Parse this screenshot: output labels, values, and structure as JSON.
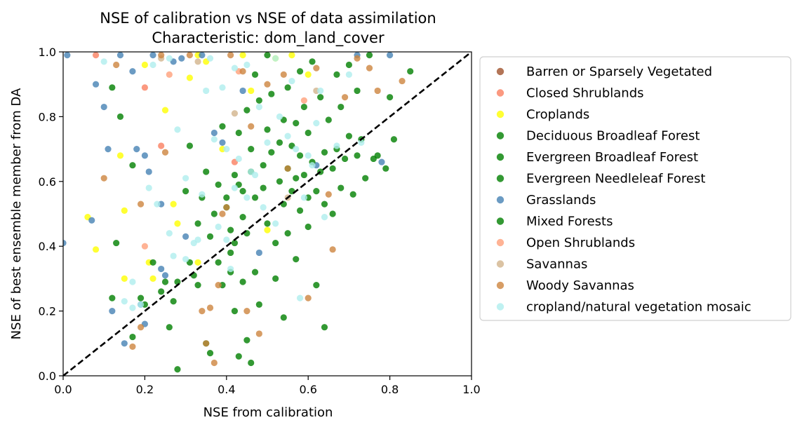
{
  "chart_data": {
    "type": "scatter",
    "title": "NSE of calibration vs NSE of data assimilation",
    "subtitle": "Characteristic: dom_land_cover",
    "xlabel": "NSE from calibration",
    "ylabel": "NSE of best ensemble member from DA",
    "xlim": [
      0.0,
      1.0
    ],
    "ylim": [
      0.0,
      1.0
    ],
    "xticks": [
      "0.0",
      "0.2",
      "0.4",
      "0.6",
      "0.8",
      "1.0"
    ],
    "yticks": [
      "0.0",
      "0.2",
      "0.4",
      "0.6",
      "0.8",
      "1.0"
    ],
    "grid": false,
    "legend_position": "outside-right",
    "reference_line": {
      "type": "identity",
      "style": "dashed",
      "color": "#000000",
      "from": [
        0,
        0
      ],
      "to": [
        1,
        1
      ]
    },
    "series": [
      {
        "name": "Barren or Sparsely Vegetated",
        "color": "#a0522d",
        "points": []
      },
      {
        "name": "Closed Shrublands",
        "color": "#fa8060",
        "points": [
          [
            0.08,
            0.99
          ],
          [
            0.2,
            0.89
          ],
          [
            0.24,
            0.71
          ],
          [
            0.42,
            0.66
          ]
        ]
      },
      {
        "name": "Croplands",
        "color": "#ffff00",
        "points": [
          [
            0.06,
            0.49
          ],
          [
            0.08,
            0.39
          ],
          [
            0.14,
            0.68
          ],
          [
            0.15,
            0.51
          ],
          [
            0.15,
            0.3
          ],
          [
            0.2,
            0.96
          ],
          [
            0.21,
            0.35
          ],
          [
            0.22,
            0.3
          ],
          [
            0.25,
            0.82
          ],
          [
            0.27,
            0.53
          ],
          [
            0.28,
            0.47
          ],
          [
            0.31,
            0.92
          ],
          [
            0.33,
            0.99
          ],
          [
            0.33,
            0.35
          ],
          [
            0.35,
            0.97
          ],
          [
            0.39,
            0.7
          ],
          [
            0.44,
            0.99
          ],
          [
            0.46,
            0.88
          ],
          [
            0.5,
            0.45
          ],
          [
            0.52,
            0.98
          ],
          [
            0.56,
            0.99
          ],
          [
            0.6,
            0.93
          ]
        ]
      },
      {
        "name": "Deciduous Broadleaf Forest",
        "color": "#008000",
        "points": []
      },
      {
        "name": "Evergreen Broadleaf Forest",
        "color": "#008000",
        "points": []
      },
      {
        "name": "Evergreen Needleleaf Forest",
        "color": "#008000",
        "points": []
      },
      {
        "name": "Grasslands",
        "color": "#4682b4",
        "points": [
          [
            0.0,
            0.41
          ],
          [
            0.01,
            0.99
          ],
          [
            0.07,
            0.48
          ],
          [
            0.08,
            0.9
          ],
          [
            0.1,
            0.83
          ],
          [
            0.11,
            0.7
          ],
          [
            0.12,
            0.2
          ],
          [
            0.14,
            0.99
          ],
          [
            0.15,
            0.1
          ],
          [
            0.17,
            0.94
          ],
          [
            0.18,
            0.7
          ],
          [
            0.19,
            0.22
          ],
          [
            0.2,
            0.68
          ],
          [
            0.2,
            0.16
          ],
          [
            0.21,
            0.63
          ],
          [
            0.22,
            0.99
          ],
          [
            0.24,
            0.53
          ],
          [
            0.24,
            0.33
          ],
          [
            0.25,
            0.31
          ],
          [
            0.27,
            0.97
          ],
          [
            0.29,
            0.98
          ],
          [
            0.3,
            0.43
          ],
          [
            0.34,
            0.99
          ],
          [
            0.37,
            0.75
          ],
          [
            0.39,
            0.72
          ],
          [
            0.44,
            0.88
          ],
          [
            0.48,
            0.38
          ],
          [
            0.62,
            0.65
          ],
          [
            0.72,
            0.99
          ],
          [
            0.78,
            0.66
          ],
          [
            0.8,
            0.99
          ]
        ]
      },
      {
        "name": "Mixed Forests",
        "color": "#008000",
        "points": [
          [
            0.12,
            0.89
          ],
          [
            0.12,
            0.24
          ],
          [
            0.13,
            0.41
          ],
          [
            0.14,
            0.8
          ],
          [
            0.17,
            0.65
          ],
          [
            0.17,
            0.12
          ],
          [
            0.19,
            0.24
          ],
          [
            0.2,
            0.22
          ],
          [
            0.22,
            0.35
          ],
          [
            0.24,
            0.26
          ],
          [
            0.25,
            0.29
          ],
          [
            0.26,
            0.15
          ],
          [
            0.27,
            0.23
          ],
          [
            0.28,
            0.29
          ],
          [
            0.28,
            0.02
          ],
          [
            0.3,
            0.57
          ],
          [
            0.31,
            0.71
          ],
          [
            0.31,
            0.35
          ],
          [
            0.32,
            0.31
          ],
          [
            0.33,
            0.28
          ],
          [
            0.33,
            0.47
          ],
          [
            0.34,
            0.55
          ],
          [
            0.35,
            0.63
          ],
          [
            0.35,
            0.1
          ],
          [
            0.36,
            0.43
          ],
          [
            0.36,
            0.07
          ],
          [
            0.37,
            0.5
          ],
          [
            0.38,
            0.59
          ],
          [
            0.38,
            0.35
          ],
          [
            0.39,
            0.77
          ],
          [
            0.39,
            0.28
          ],
          [
            0.4,
            0.55
          ],
          [
            0.4,
            0.52
          ],
          [
            0.41,
            0.45
          ],
          [
            0.41,
            0.38
          ],
          [
            0.41,
            0.32
          ],
          [
            0.42,
            0.62
          ],
          [
            0.42,
            0.41
          ],
          [
            0.42,
            0.2
          ],
          [
            0.43,
            0.75
          ],
          [
            0.43,
            0.59
          ],
          [
            0.43,
            0.06
          ],
          [
            0.44,
            0.57
          ],
          [
            0.44,
            0.49
          ],
          [
            0.44,
            0.29
          ],
          [
            0.45,
            0.82
          ],
          [
            0.45,
            0.44
          ],
          [
            0.45,
            0.11
          ],
          [
            0.46,
            0.7
          ],
          [
            0.46,
            0.63
          ],
          [
            0.46,
            0.04
          ],
          [
            0.47,
            0.93
          ],
          [
            0.47,
            0.55
          ],
          [
            0.47,
            0.32
          ],
          [
            0.48,
            0.85
          ],
          [
            0.48,
            0.22
          ],
          [
            0.49,
            0.65
          ],
          [
            0.49,
            0.58
          ],
          [
            0.5,
            0.99
          ],
          [
            0.5,
            0.76
          ],
          [
            0.5,
            0.47
          ],
          [
            0.51,
            0.87
          ],
          [
            0.51,
            0.69
          ],
          [
            0.52,
            0.41
          ],
          [
            0.52,
            0.3
          ],
          [
            0.53,
            0.72
          ],
          [
            0.53,
            0.6
          ],
          [
            0.54,
            0.79
          ],
          [
            0.54,
            0.53
          ],
          [
            0.54,
            0.18
          ],
          [
            0.55,
            0.89
          ],
          [
            0.55,
            0.64
          ],
          [
            0.55,
            0.44
          ],
          [
            0.56,
            0.71
          ],
          [
            0.56,
            0.57
          ],
          [
            0.57,
            0.78
          ],
          [
            0.57,
            0.61
          ],
          [
            0.57,
            0.36
          ],
          [
            0.58,
            0.94
          ],
          [
            0.58,
            0.68
          ],
          [
            0.58,
            0.51
          ],
          [
            0.59,
            0.83
          ],
          [
            0.59,
            0.62
          ],
          [
            0.6,
            0.75
          ],
          [
            0.6,
            0.55
          ],
          [
            0.6,
            0.46
          ],
          [
            0.61,
            0.97
          ],
          [
            0.61,
            0.66
          ],
          [
            0.62,
            0.57
          ],
          [
            0.62,
            0.28
          ],
          [
            0.63,
            0.86
          ],
          [
            0.63,
            0.63
          ],
          [
            0.64,
            0.69
          ],
          [
            0.64,
            0.53
          ],
          [
            0.64,
            0.15
          ],
          [
            0.65,
            0.79
          ],
          [
            0.66,
            0.64
          ],
          [
            0.66,
            0.5
          ],
          [
            0.67,
            0.93
          ],
          [
            0.67,
            0.7
          ],
          [
            0.68,
            0.83
          ],
          [
            0.68,
            0.58
          ],
          [
            0.69,
            0.67
          ],
          [
            0.7,
            0.96
          ],
          [
            0.7,
            0.74
          ],
          [
            0.71,
            0.56
          ],
          [
            0.72,
            0.88
          ],
          [
            0.72,
            0.68
          ],
          [
            0.73,
            0.73
          ],
          [
            0.74,
            0.61
          ],
          [
            0.75,
            0.99
          ],
          [
            0.76,
            0.67
          ],
          [
            0.77,
            0.68
          ],
          [
            0.79,
            0.64
          ],
          [
            0.8,
            0.86
          ],
          [
            0.81,
            0.73
          ],
          [
            0.85,
            0.94
          ]
        ]
      },
      {
        "name": "Open Shrublands",
        "color": "#ffa07a",
        "points": [
          [
            0.2,
            0.4
          ],
          [
            0.26,
            0.93
          ],
          [
            0.43,
            0.94
          ],
          [
            0.59,
            0.85
          ]
        ]
      },
      {
        "name": "Savannas",
        "color": "#d2b48c",
        "points": [
          [
            0.24,
            0.98
          ],
          [
            0.33,
            0.97
          ],
          [
            0.42,
            0.81
          ],
          [
            0.55,
            0.55
          ],
          [
            0.62,
            0.88
          ]
        ]
      },
      {
        "name": "Woody Savannas",
        "color": "#cd853f",
        "points": [
          [
            0.1,
            0.61
          ],
          [
            0.13,
            0.96
          ],
          [
            0.17,
            0.09
          ],
          [
            0.19,
            0.53
          ],
          [
            0.19,
            0.15
          ],
          [
            0.24,
            0.99
          ],
          [
            0.25,
            0.69
          ],
          [
            0.31,
            0.99
          ],
          [
            0.34,
            0.2
          ],
          [
            0.35,
            0.1
          ],
          [
            0.36,
            0.21
          ],
          [
            0.37,
            0.04
          ],
          [
            0.38,
            0.28
          ],
          [
            0.39,
            0.5
          ],
          [
            0.4,
            0.52
          ],
          [
            0.41,
            0.99
          ],
          [
            0.44,
            0.94
          ],
          [
            0.45,
            0.2
          ],
          [
            0.46,
            0.77
          ],
          [
            0.48,
            0.13
          ],
          [
            0.5,
            0.9
          ],
          [
            0.54,
            0.93
          ],
          [
            0.55,
            0.64
          ],
          [
            0.6,
            0.24
          ],
          [
            0.62,
            0.95
          ],
          [
            0.65,
            0.56
          ],
          [
            0.66,
            0.39
          ],
          [
            0.69,
            0.86
          ],
          [
            0.72,
            0.98
          ],
          [
            0.75,
            0.95
          ],
          [
            0.77,
            0.88
          ],
          [
            0.83,
            0.91
          ]
        ]
      },
      {
        "name": "cropland/natural vegetation mosaic",
        "color": "#afeeee",
        "points": [
          [
            0.1,
            0.97
          ],
          [
            0.15,
            0.23
          ],
          [
            0.17,
            0.21
          ],
          [
            0.17,
            0.29
          ],
          [
            0.19,
            0.22
          ],
          [
            0.21,
            0.58
          ],
          [
            0.22,
            0.96
          ],
          [
            0.23,
            0.53
          ],
          [
            0.26,
            0.44
          ],
          [
            0.26,
            0.98
          ],
          [
            0.27,
            0.37
          ],
          [
            0.28,
            0.76
          ],
          [
            0.3,
            0.61
          ],
          [
            0.3,
            0.36
          ],
          [
            0.32,
            0.41
          ],
          [
            0.33,
            0.42
          ],
          [
            0.34,
            0.56
          ],
          [
            0.35,
            0.88
          ],
          [
            0.36,
            0.98
          ],
          [
            0.37,
            0.73
          ],
          [
            0.38,
            0.46
          ],
          [
            0.39,
            0.89
          ],
          [
            0.4,
            0.7
          ],
          [
            0.4,
            0.42
          ],
          [
            0.41,
            0.33
          ],
          [
            0.42,
            0.95
          ],
          [
            0.42,
            0.58
          ],
          [
            0.43,
            0.67
          ],
          [
            0.45,
            0.96
          ],
          [
            0.45,
            0.55
          ],
          [
            0.46,
            0.63
          ],
          [
            0.47,
            0.62
          ],
          [
            0.48,
            0.83
          ],
          [
            0.49,
            0.52
          ],
          [
            0.5,
            0.72
          ],
          [
            0.52,
            0.98
          ],
          [
            0.52,
            0.47
          ],
          [
            0.53,
            0.8
          ],
          [
            0.55,
            0.74
          ],
          [
            0.56,
            0.91
          ],
          [
            0.57,
            0.7
          ],
          [
            0.58,
            0.24
          ],
          [
            0.59,
            0.55
          ],
          [
            0.6,
            0.68
          ],
          [
            0.61,
            0.65
          ],
          [
            0.62,
            0.78
          ],
          [
            0.63,
            0.88
          ],
          [
            0.64,
            0.49
          ],
          [
            0.67,
            0.71
          ],
          [
            0.7,
            0.93
          ],
          [
            0.73,
            0.72
          ]
        ]
      }
    ]
  }
}
